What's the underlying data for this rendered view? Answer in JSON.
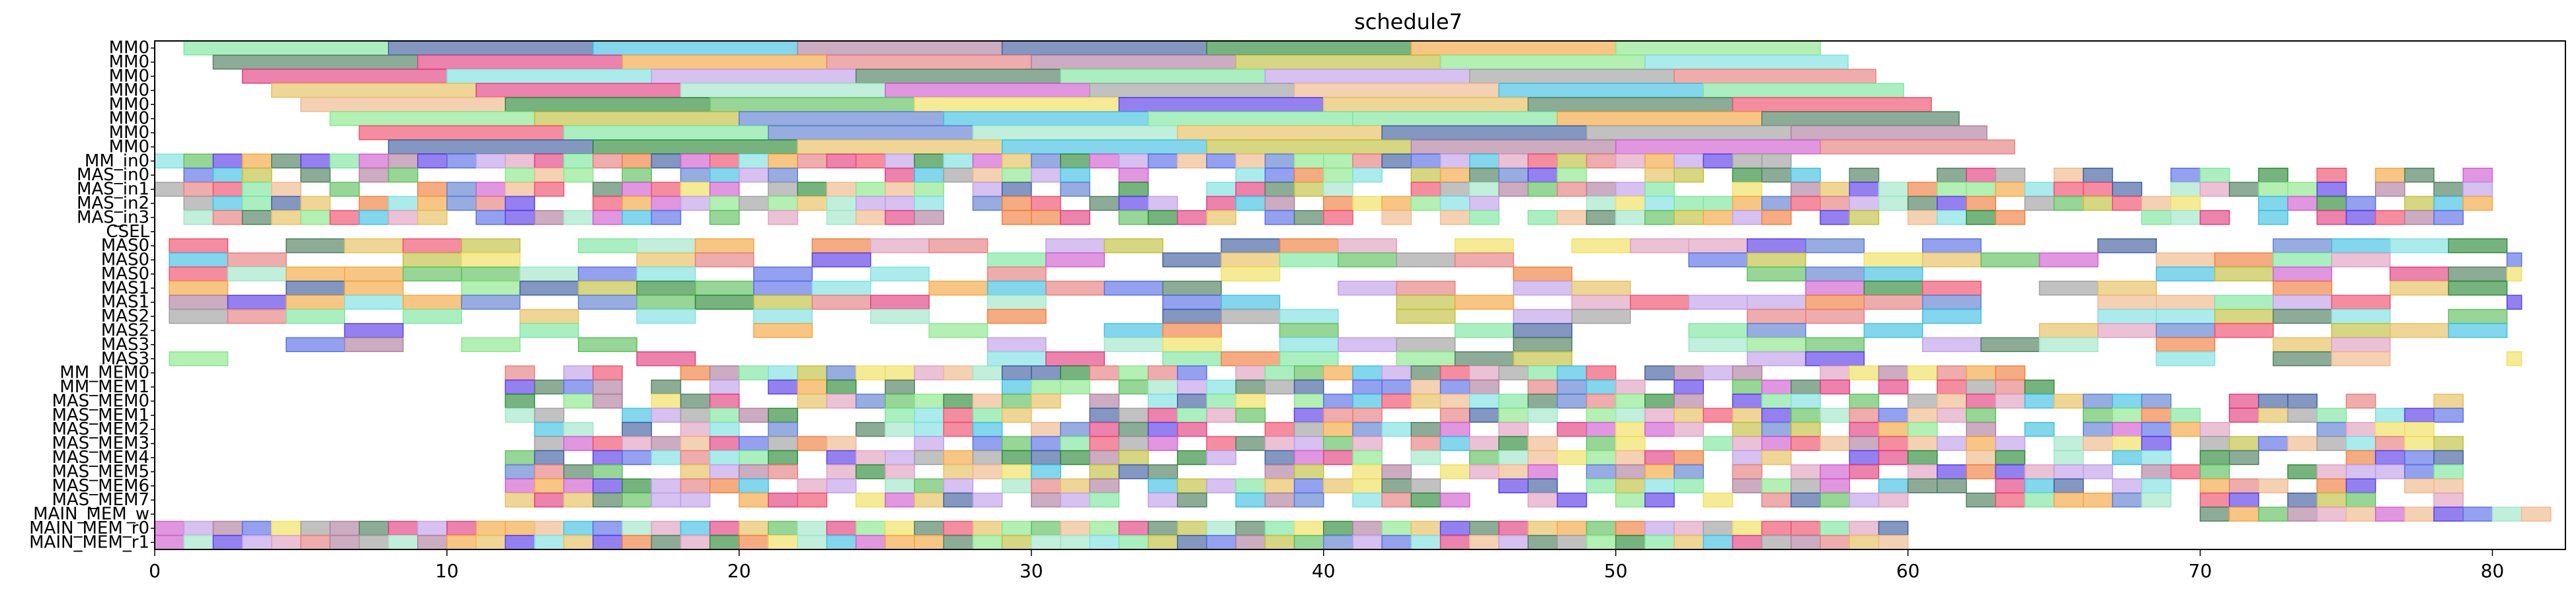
{
  "chart_data": {
    "type": "gantt",
    "title": "schedule7",
    "xlim": [
      0,
      82.5
    ],
    "x_ticks": [
      0,
      10,
      20,
      30,
      40,
      50,
      60,
      70,
      80
    ],
    "rows": [
      "MM0",
      "MM0",
      "MM0",
      "MM0",
      "MM0",
      "MM0",
      "MM0",
      "MM0",
      "MM_in0",
      "MAS_in0",
      "MAS_in1",
      "MAS_in2",
      "MAS_in3",
      "CSEL",
      "MAS0",
      "MAS0",
      "MAS0",
      "MAS1",
      "MAS1",
      "MAS2",
      "MAS2",
      "MAS3",
      "MAS3",
      "MM_MEM0",
      "MM_MEM1",
      "MAS_MEM0",
      "MAS_MEM1",
      "MAS_MEM2",
      "MAS_MEM3",
      "MAS_MEM4",
      "MAS_MEM5",
      "MAS_MEM6",
      "MAS_MEM7",
      "MAIN_MEM_w",
      "MAIN_MEM_r0",
      "MAIN_MEM_r1"
    ],
    "palette": [
      "#8ce68c",
      "#f5a742",
      "#f0b98c",
      "#5a6ee6",
      "#f0506e",
      "#2e8b3a",
      "#5a3ee6",
      "#7ee6a0",
      "#c0a0e8",
      "#a0e6c8",
      "#e6c060",
      "#6080d0",
      "#e68080",
      "#40c0e0",
      "#a0a0a0",
      "#d060d0",
      "#f0e060",
      "#508060",
      "#e0a0c0",
      "#80e0e0",
      "#c0c040",
      "#e04080",
      "#60c060",
      "#b080a0",
      "#f08040",
      "#4060a0"
    ],
    "fill_opacity": 0.65
  }
}
